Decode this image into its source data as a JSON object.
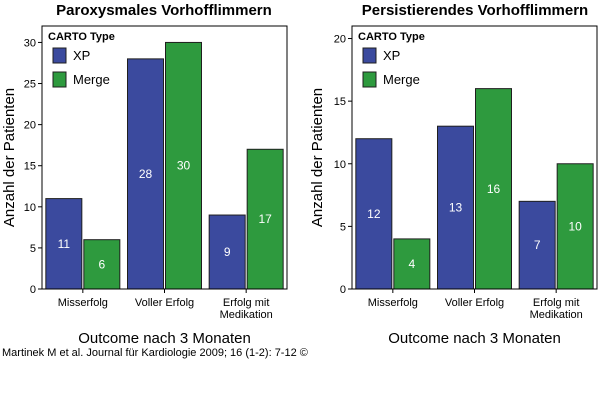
{
  "colors": {
    "xp": "#3b4a9e",
    "merge": "#2e9a3e",
    "bar_stroke": "#1f1f1f",
    "bar_label": "#ffffff"
  },
  "chart_data": [
    {
      "type": "bar",
      "title": "Paroxysmales Vorhofflimmern",
      "xlabel": "Outcome nach 3 Monaten",
      "ylabel": "Anzahl der Patienten",
      "categories": [
        [
          "Misserfolg"
        ],
        [
          "Voller Erfolg"
        ],
        [
          "Erfolg mit",
          "Medikation"
        ]
      ],
      "series": [
        {
          "name": "XP",
          "values": [
            11,
            28,
            9
          ]
        },
        {
          "name": "Merge",
          "values": [
            6,
            30,
            17
          ]
        }
      ],
      "ylim": [
        0,
        32
      ],
      "yticks": [
        "0",
        "5",
        "10",
        "15",
        "20",
        "25",
        "30"
      ],
      "legend": {
        "title": "CARTO Type",
        "position": "top-left"
      },
      "grid": false
    },
    {
      "type": "bar",
      "title": "Persistierendes Vorhofflimmern",
      "xlabel": "Outcome nach 3 Monaten",
      "ylabel": "Anzahl der Patienten",
      "categories": [
        [
          "Misserfolg"
        ],
        [
          "Voller Erfolg"
        ],
        [
          "Erfolg mit",
          "Medikation"
        ]
      ],
      "series": [
        {
          "name": "XP",
          "values": [
            12,
            13,
            7
          ]
        },
        {
          "name": "Merge",
          "values": [
            4,
            16,
            10
          ]
        }
      ],
      "ylim": [
        0,
        21
      ],
      "yticks": [
        "0",
        "5",
        "10",
        "15",
        "20"
      ],
      "legend": {
        "title": "CARTO Type",
        "position": "top-left"
      },
      "grid": false
    }
  ],
  "citation": "Martinek M et al. Journal für Kardiologie 2009; 16 (1-2): 7-12 ©"
}
